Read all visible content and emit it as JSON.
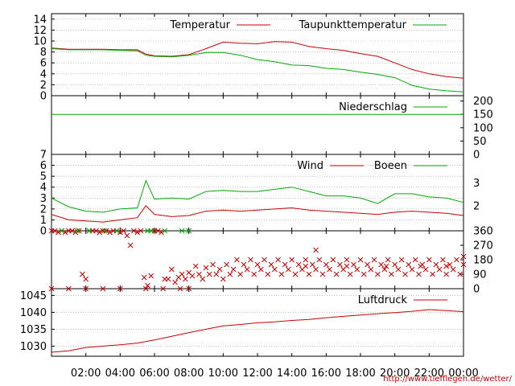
{
  "credit": "http://www.tiefflegen.de/wetter/",
  "colors": {
    "red": "#cc0000",
    "green": "#00aa00",
    "grid": "#999999",
    "axis": "#000000"
  },
  "chart_data": [
    {
      "id": "temperature",
      "type": "line",
      "ylim": [
        0,
        15
      ],
      "yticks_left": [
        "0",
        "2",
        "4",
        "6",
        "8",
        "10",
        "12",
        "14"
      ],
      "legend": [
        {
          "name": "Temperatur",
          "color": "#cc0000"
        },
        {
          "name": "Taupunkttemperatur",
          "color": "#00aa00"
        }
      ],
      "x_hours": [
        0,
        1,
        2,
        3,
        4,
        5,
        5.5,
        6,
        7,
        8,
        9,
        10,
        11,
        12,
        13,
        14,
        15,
        16,
        17,
        18,
        19,
        20,
        21,
        22,
        23,
        24
      ],
      "series": [
        {
          "name": "Temperatur",
          "color": "#cc0000",
          "values": [
            8.7,
            8.5,
            8.5,
            8.5,
            8.4,
            8.4,
            7.6,
            7.3,
            7.2,
            7.5,
            8.6,
            9.8,
            9.6,
            9.5,
            9.9,
            9.8,
            9.0,
            8.6,
            8.3,
            7.7,
            7.2,
            6.0,
            4.8,
            4.0,
            3.5,
            3.2
          ]
        },
        {
          "name": "Taupunkttemperatur",
          "color": "#00aa00",
          "values": [
            8.6,
            8.4,
            8.4,
            8.4,
            8.3,
            8.2,
            7.4,
            7.2,
            7.1,
            7.4,
            7.9,
            7.9,
            7.4,
            6.6,
            6.2,
            5.6,
            5.5,
            5.0,
            4.8,
            4.3,
            3.9,
            3.3,
            1.9,
            1.2,
            0.9,
            0.7
          ]
        }
      ]
    },
    {
      "id": "precipitation",
      "type": "line",
      "ylim": [
        0,
        220
      ],
      "yticks_right": [
        "0",
        "50",
        "100",
        "150",
        "200"
      ],
      "legend": [
        {
          "name": "Niederschlag",
          "color": "#00aa00"
        }
      ],
      "series": [
        {
          "name": "Niederschlag",
          "color": "#00aa00",
          "x_hours": [
            0,
            24
          ],
          "values": [
            150,
            150
          ]
        }
      ]
    },
    {
      "id": "wind",
      "type": "line",
      "ylim": [
        0,
        7
      ],
      "yticks_left": [
        "0",
        "1",
        "2",
        "3",
        "4",
        "5",
        "6",
        "7"
      ],
      "yticks_right": [
        "2",
        "3"
      ],
      "legend": [
        {
          "name": "Wind",
          "color": "#cc0000"
        },
        {
          "name": "Boeen",
          "color": "#00aa00"
        }
      ],
      "x_hours": [
        0,
        1,
        2,
        3,
        4,
        5,
        5.5,
        6,
        7,
        8,
        9,
        10,
        11,
        12,
        13,
        14,
        15,
        16,
        17,
        18,
        19,
        20,
        21,
        22,
        23,
        24
      ],
      "series": [
        {
          "name": "Wind",
          "color": "#cc0000",
          "values": [
            1.5,
            1.0,
            0.9,
            0.8,
            1.0,
            1.2,
            2.3,
            1.5,
            1.3,
            1.4,
            1.8,
            1.9,
            1.8,
            1.9,
            2.0,
            2.1,
            1.9,
            1.8,
            1.7,
            1.6,
            1.5,
            1.7,
            1.8,
            1.7,
            1.6,
            1.4
          ]
        },
        {
          "name": "Boeen",
          "color": "#00aa00",
          "values": [
            3.0,
            2.2,
            1.8,
            1.7,
            2.0,
            2.1,
            4.6,
            2.9,
            3.0,
            2.9,
            3.6,
            3.7,
            3.6,
            3.6,
            3.8,
            4.0,
            3.6,
            3.2,
            3.2,
            3.0,
            2.5,
            3.4,
            3.4,
            3.1,
            3.0,
            2.6
          ]
        }
      ]
    },
    {
      "id": "wind_direction",
      "type": "scatter",
      "ylim": [
        0,
        360
      ],
      "yticks_right": [
        "0",
        "90",
        "180",
        "270",
        "360"
      ],
      "marker": "x",
      "points_red": [
        [
          0.0,
          360
        ],
        [
          0.2,
          360
        ],
        [
          0.4,
          350
        ],
        [
          0.6,
          360
        ],
        [
          0.8,
          350
        ],
        [
          1.0,
          360
        ],
        [
          1.2,
          360
        ],
        [
          1.4,
          350
        ],
        [
          1.6,
          360
        ],
        [
          1.8,
          90
        ],
        [
          2.0,
          60
        ],
        [
          2.2,
          360
        ],
        [
          2.4,
          360
        ],
        [
          2.6,
          360
        ],
        [
          2.8,
          350
        ],
        [
          3.0,
          360
        ],
        [
          3.2,
          360
        ],
        [
          3.4,
          350
        ],
        [
          3.6,
          360
        ],
        [
          3.8,
          360
        ],
        [
          4.0,
          350
        ],
        [
          4.2,
          360
        ],
        [
          4.4,
          330
        ],
        [
          4.6,
          270
        ],
        [
          4.8,
          360
        ],
        [
          5.0,
          350
        ],
        [
          5.2,
          360
        ],
        [
          5.4,
          70
        ],
        [
          5.6,
          20
        ],
        [
          5.8,
          80
        ],
        [
          6.0,
          360
        ],
        [
          6.2,
          360
        ],
        [
          6.4,
          350
        ],
        [
          6.6,
          60
        ],
        [
          6.8,
          60
        ],
        [
          7.0,
          120
        ],
        [
          7.2,
          40
        ],
        [
          7.4,
          70
        ],
        [
          7.6,
          90
        ],
        [
          7.8,
          60
        ],
        [
          8.0,
          100
        ],
        [
          8.2,
          80
        ],
        [
          8.4,
          140
        ],
        [
          8.6,
          90
        ],
        [
          8.8,
          60
        ],
        [
          9.0,
          130
        ],
        [
          9.2,
          90
        ],
        [
          9.4,
          150
        ],
        [
          9.6,
          90
        ],
        [
          9.8,
          120
        ],
        [
          10.0,
          60
        ],
        [
          10.2,
          150
        ],
        [
          10.4,
          90
        ],
        [
          10.6,
          120
        ],
        [
          10.8,
          180
        ],
        [
          11.0,
          90
        ],
        [
          11.2,
          150
        ],
        [
          11.4,
          120
        ],
        [
          11.6,
          180
        ],
        [
          11.8,
          90
        ],
        [
          12.0,
          150
        ],
        [
          12.2,
          120
        ],
        [
          12.4,
          180
        ],
        [
          12.6,
          90
        ],
        [
          12.8,
          150
        ],
        [
          13.0,
          120
        ],
        [
          13.2,
          180
        ],
        [
          13.4,
          90
        ],
        [
          13.6,
          150
        ],
        [
          13.8,
          120
        ],
        [
          14.0,
          180
        ],
        [
          14.2,
          90
        ],
        [
          14.4,
          150
        ],
        [
          14.6,
          120
        ],
        [
          14.8,
          180
        ],
        [
          15.0,
          90
        ],
        [
          15.2,
          150
        ],
        [
          15.4,
          120
        ],
        [
          15.6,
          180
        ],
        [
          15.8,
          90
        ],
        [
          16.0,
          150
        ],
        [
          16.2,
          120
        ],
        [
          16.4,
          180
        ],
        [
          16.6,
          90
        ],
        [
          16.8,
          150
        ],
        [
          17.0,
          120
        ],
        [
          17.2,
          180
        ],
        [
          17.4,
          90
        ],
        [
          17.6,
          150
        ],
        [
          17.8,
          120
        ],
        [
          18.0,
          180
        ],
        [
          18.2,
          90
        ],
        [
          18.4,
          150
        ],
        [
          18.6,
          120
        ],
        [
          18.8,
          180
        ],
        [
          19.0,
          90
        ],
        [
          19.2,
          150
        ],
        [
          19.4,
          120
        ],
        [
          19.6,
          180
        ],
        [
          19.8,
          90
        ],
        [
          20.0,
          150
        ],
        [
          20.2,
          120
        ],
        [
          20.4,
          180
        ],
        [
          20.6,
          90
        ],
        [
          20.8,
          150
        ],
        [
          21.0,
          120
        ],
        [
          21.2,
          180
        ],
        [
          21.4,
          90
        ],
        [
          21.6,
          150
        ],
        [
          21.8,
          120
        ],
        [
          22.0,
          180
        ],
        [
          22.2,
          90
        ],
        [
          22.4,
          150
        ],
        [
          22.6,
          120
        ],
        [
          22.8,
          180
        ],
        [
          23.0,
          90
        ],
        [
          23.2,
          150
        ],
        [
          23.4,
          120
        ],
        [
          23.6,
          180
        ],
        [
          23.8,
          90
        ],
        [
          24.0,
          150
        ],
        [
          15.4,
          240
        ],
        [
          24.0,
          200
        ],
        [
          0.0,
          0
        ],
        [
          1.0,
          0
        ],
        [
          2.0,
          0
        ],
        [
          3.0,
          0
        ],
        [
          4.0,
          0
        ],
        [
          5.5,
          0
        ],
        [
          6.5,
          0
        ],
        [
          7.5,
          0
        ],
        [
          8.0,
          0
        ],
        [
          14.8,
          140
        ],
        [
          17.2,
          140
        ],
        [
          19.5,
          140
        ],
        [
          21.5,
          140
        ],
        [
          23.0,
          140
        ]
      ],
      "points_green": [
        [
          0.6,
          360
        ],
        [
          1.5,
          360
        ],
        [
          2.2,
          360
        ],
        [
          3.1,
          360
        ],
        [
          3.8,
          360
        ],
        [
          5.6,
          360
        ],
        [
          5.8,
          360
        ],
        [
          6.6,
          360
        ],
        [
          7.6,
          360
        ],
        [
          8.0,
          360
        ]
      ]
    },
    {
      "id": "pressure",
      "type": "line",
      "ylim": [
        1027,
        1047
      ],
      "yticks_left": [
        "1030",
        "1035",
        "1040",
        "1045"
      ],
      "legend": [
        {
          "name": "Luftdruck",
          "color": "#cc0000"
        }
      ],
      "x_hours": [
        0,
        1,
        2,
        3,
        4,
        5,
        6,
        7,
        8,
        9,
        10,
        11,
        12,
        13,
        14,
        15,
        16,
        17,
        18,
        19,
        20,
        21,
        22,
        23,
        24
      ],
      "series": [
        {
          "name": "Luftdruck",
          "color": "#cc0000",
          "values": [
            1028.2,
            1028.6,
            1029.6,
            1030.0,
            1030.4,
            1030.9,
            1031.8,
            1032.9,
            1034.0,
            1035.0,
            1036.0,
            1036.4,
            1036.9,
            1037.2,
            1037.6,
            1037.9,
            1038.4,
            1038.8,
            1039.2,
            1039.6,
            1039.9,
            1040.3,
            1040.8,
            1040.5,
            1040.2
          ]
        }
      ]
    }
  ],
  "x_axis": {
    "ticks_hours": [
      2,
      4,
      6,
      8,
      10,
      12,
      14,
      16,
      18,
      20,
      22,
      24
    ],
    "tick_labels": [
      "02:00",
      "04:00",
      "06:00",
      "08:00",
      "10:00",
      "12:00",
      "14:00",
      "16:00",
      "18:00",
      "20:00",
      "22:00",
      "00:00"
    ]
  }
}
